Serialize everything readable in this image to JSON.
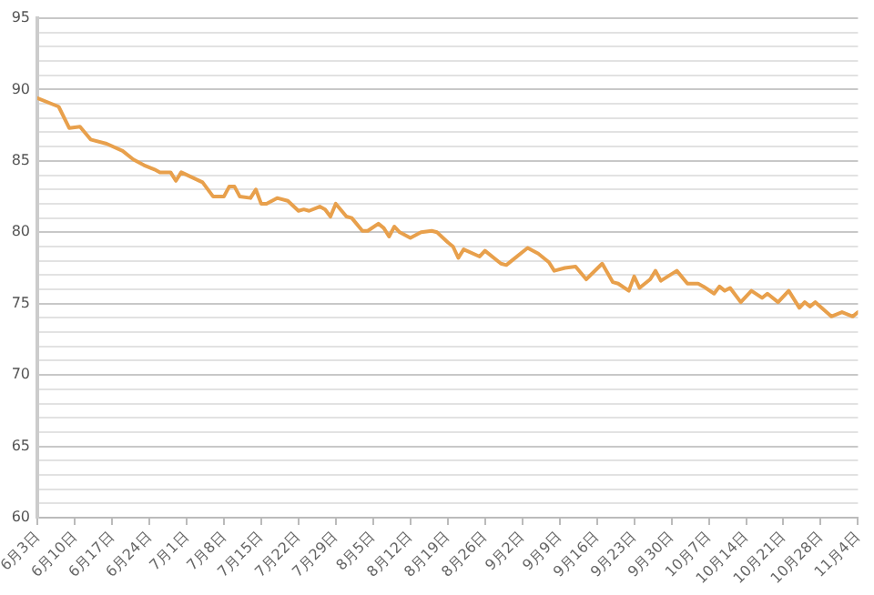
{
  "chart_data": {
    "type": "line",
    "color": "#e8a04c",
    "grid": "y",
    "marker": "none",
    "line_style": "solid",
    "x": [
      "--06-03",
      "--06-07",
      "--06-09",
      "--06-11",
      "--06-13",
      "--06-16",
      "--06-19",
      "--06-21",
      "--06-23",
      "--06-25",
      "--06-26",
      "--06-28",
      "--06-29",
      "--06-30",
      "--07-04",
      "--07-06",
      "--07-08",
      "--07-09",
      "--07-10",
      "--07-11",
      "--07-13",
      "--07-14",
      "--07-15",
      "--07-16",
      "--07-18",
      "--07-20",
      "--07-22",
      "--07-23",
      "--07-24",
      "--07-26",
      "--07-27",
      "--07-28",
      "--07-29",
      "--07-31",
      "--08-01",
      "--08-03",
      "--08-04",
      "--08-06",
      "--08-07",
      "--08-08",
      "--08-09",
      "--08-10",
      "--08-12",
      "--08-14",
      "--08-16",
      "--08-17",
      "--08-19",
      "--08-20",
      "--08-21",
      "--08-22",
      "--08-25",
      "--08-26",
      "--08-29",
      "--08-30",
      "--08-31",
      "--09-03",
      "--09-05",
      "--09-07",
      "--09-08",
      "--09-10",
      "--09-12",
      "--09-14",
      "--09-17",
      "--09-19",
      "--09-20",
      "--09-22",
      "--09-23",
      "--09-24",
      "--09-26",
      "--09-27",
      "--09-28",
      "--10-01",
      "--10-03",
      "--10-05",
      "--10-06",
      "--10-08",
      "--10-09",
      "--10-10",
      "--10-11",
      "--10-13",
      "--10-15",
      "--10-17",
      "--10-18",
      "--10-20",
      "--10-22",
      "--10-24",
      "--10-25",
      "--10-26",
      "--10-27",
      "--10-30",
      "--11-01",
      "--11-03",
      "--11-04"
    ],
    "values": [
      89.4,
      88.8,
      87.3,
      87.4,
      86.5,
      86.2,
      85.7,
      85.1,
      84.7,
      84.4,
      84.2,
      84.2,
      83.6,
      84.2,
      83.5,
      82.5,
      82.5,
      83.2,
      83.2,
      82.5,
      82.4,
      83.0,
      82.0,
      82.0,
      82.4,
      82.2,
      81.5,
      81.6,
      81.5,
      81.8,
      81.6,
      81.1,
      82.0,
      81.1,
      81.0,
      80.1,
      80.1,
      80.6,
      80.3,
      79.7,
      80.4,
      80.0,
      79.6,
      80.0,
      80.1,
      80.0,
      79.3,
      79.0,
      78.2,
      78.8,
      78.3,
      78.7,
      77.8,
      77.7,
      78.0,
      78.9,
      78.5,
      77.9,
      77.3,
      77.5,
      77.6,
      76.7,
      77.8,
      76.5,
      76.4,
      75.9,
      76.9,
      76.1,
      76.7,
      77.3,
      76.6,
      77.3,
      76.4,
      76.4,
      76.2,
      75.7,
      76.2,
      75.9,
      76.1,
      75.1,
      75.9,
      75.4,
      75.7,
      75.1,
      75.9,
      74.7,
      75.1,
      74.8,
      75.1,
      74.1,
      74.4,
      74.1,
      74.4
    ],
    "xlim": [
      "--06-03",
      "--11-04"
    ],
    "xticks": [
      {
        "value": "--06-03",
        "label": "6月3日"
      },
      {
        "value": "--06-10",
        "label": "6月10日"
      },
      {
        "value": "--06-17",
        "label": "6月17日"
      },
      {
        "value": "--06-24",
        "label": "6月24日"
      },
      {
        "value": "--07-01",
        "label": "7月1日"
      },
      {
        "value": "--07-08",
        "label": "7月8日"
      },
      {
        "value": "--07-15",
        "label": "7月15日"
      },
      {
        "value": "--07-22",
        "label": "7月22日"
      },
      {
        "value": "--07-29",
        "label": "7月29日"
      },
      {
        "value": "--08-05",
        "label": "8月5日"
      },
      {
        "value": "--08-12",
        "label": "8月12日"
      },
      {
        "value": "--08-19",
        "label": "8月19日"
      },
      {
        "value": "--08-26",
        "label": "8月26日"
      },
      {
        "value": "--09-02",
        "label": "9月2日"
      },
      {
        "value": "--09-09",
        "label": "9月9日"
      },
      {
        "value": "--09-16",
        "label": "9月16日"
      },
      {
        "value": "--09-23",
        "label": "9月23日"
      },
      {
        "value": "--09-30",
        "label": "9月30日"
      },
      {
        "value": "--10-07",
        "label": "10月7日"
      },
      {
        "value": "--10-14",
        "label": "10月14日"
      },
      {
        "value": "--10-21",
        "label": "10月21日"
      },
      {
        "value": "--10-28",
        "label": "10月28日"
      },
      {
        "value": "--11-04",
        "label": "11月4日"
      }
    ],
    "ylim": [
      60,
      95
    ],
    "yticks": [
      60,
      {
        "value": 61,
        "label": null
      },
      {
        "value": 62,
        "label": null
      },
      {
        "value": 63,
        "label": null
      },
      {
        "value": 64,
        "label": null
      },
      65,
      {
        "value": 66,
        "label": null
      },
      {
        "value": 67,
        "label": null
      },
      {
        "value": 68,
        "label": null
      },
      {
        "value": 69,
        "label": null
      },
      70,
      {
        "value": 71,
        "label": null
      },
      {
        "value": 72,
        "label": null
      },
      {
        "value": 73,
        "label": null
      },
      {
        "value": 74,
        "label": null
      },
      75,
      {
        "value": 76,
        "label": null
      },
      {
        "value": 77,
        "label": null
      },
      {
        "value": 78,
        "label": null
      },
      {
        "value": 79,
        "label": null
      },
      80,
      {
        "value": 81,
        "label": null
      },
      {
        "value": 82,
        "label": null
      },
      {
        "value": 83,
        "label": null
      },
      {
        "value": 84,
        "label": null
      },
      85,
      {
        "value": 86,
        "label": null
      },
      {
        "value": 87,
        "label": null
      },
      {
        "value": 88,
        "label": null
      },
      {
        "value": 89,
        "label": null
      },
      90,
      {
        "value": 91,
        "label": null
      },
      {
        "value": 92,
        "label": null
      },
      {
        "value": 93,
        "label": null
      },
      {
        "value": 94,
        "label": null
      },
      95
    ]
  }
}
